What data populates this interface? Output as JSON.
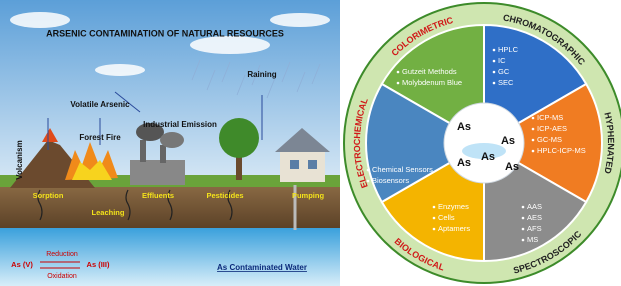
{
  "left": {
    "title": "ARSENIC CONTAMINATION OF NATURAL RESOURCES",
    "volatile": "Volatile Arsenic",
    "raining": "Raining",
    "industrial": "Industrial Emission",
    "forest_fire": "Forest Fire",
    "volcanism": "Volcanism",
    "sorption": "Sorption",
    "leaching": "Leaching",
    "effluents": "Effluents",
    "pesticides": "Pesticides",
    "pumping": "Pumping",
    "reduction": "Reduction",
    "oxidation": "Oxidation",
    "as_v": "As (V)",
    "as_iii": "As (III)",
    "water": "As Contaminated Water"
  },
  "right": {
    "categories": [
      {
        "name": "COLORIMETRIC",
        "items": [
          "Gutzeit Methods",
          "Molybdenum Blue"
        ]
      },
      {
        "name": "CHROMATOGRAPHIC",
        "items": [
          "HPLC",
          "IC",
          "GC",
          "SEC"
        ]
      },
      {
        "name": "HYPHENATED",
        "items": [
          "ICP-MS",
          "ICP-AES",
          "GC-MS",
          "HPLC-ICP-MS"
        ]
      },
      {
        "name": "SPECTROSCOPIC",
        "items": [
          "AAS",
          "AES",
          "AFS",
          "MS"
        ]
      },
      {
        "name": "BIOLOGICAL",
        "items": [
          "Enzymes",
          "Cells",
          "Aptamers"
        ]
      },
      {
        "name": "ELECTROCHEMICAL",
        "items": [
          "Chemical Sensors",
          "Biosensors"
        ]
      }
    ],
    "center": [
      "As",
      "As",
      "As",
      "As",
      "As"
    ]
  }
}
